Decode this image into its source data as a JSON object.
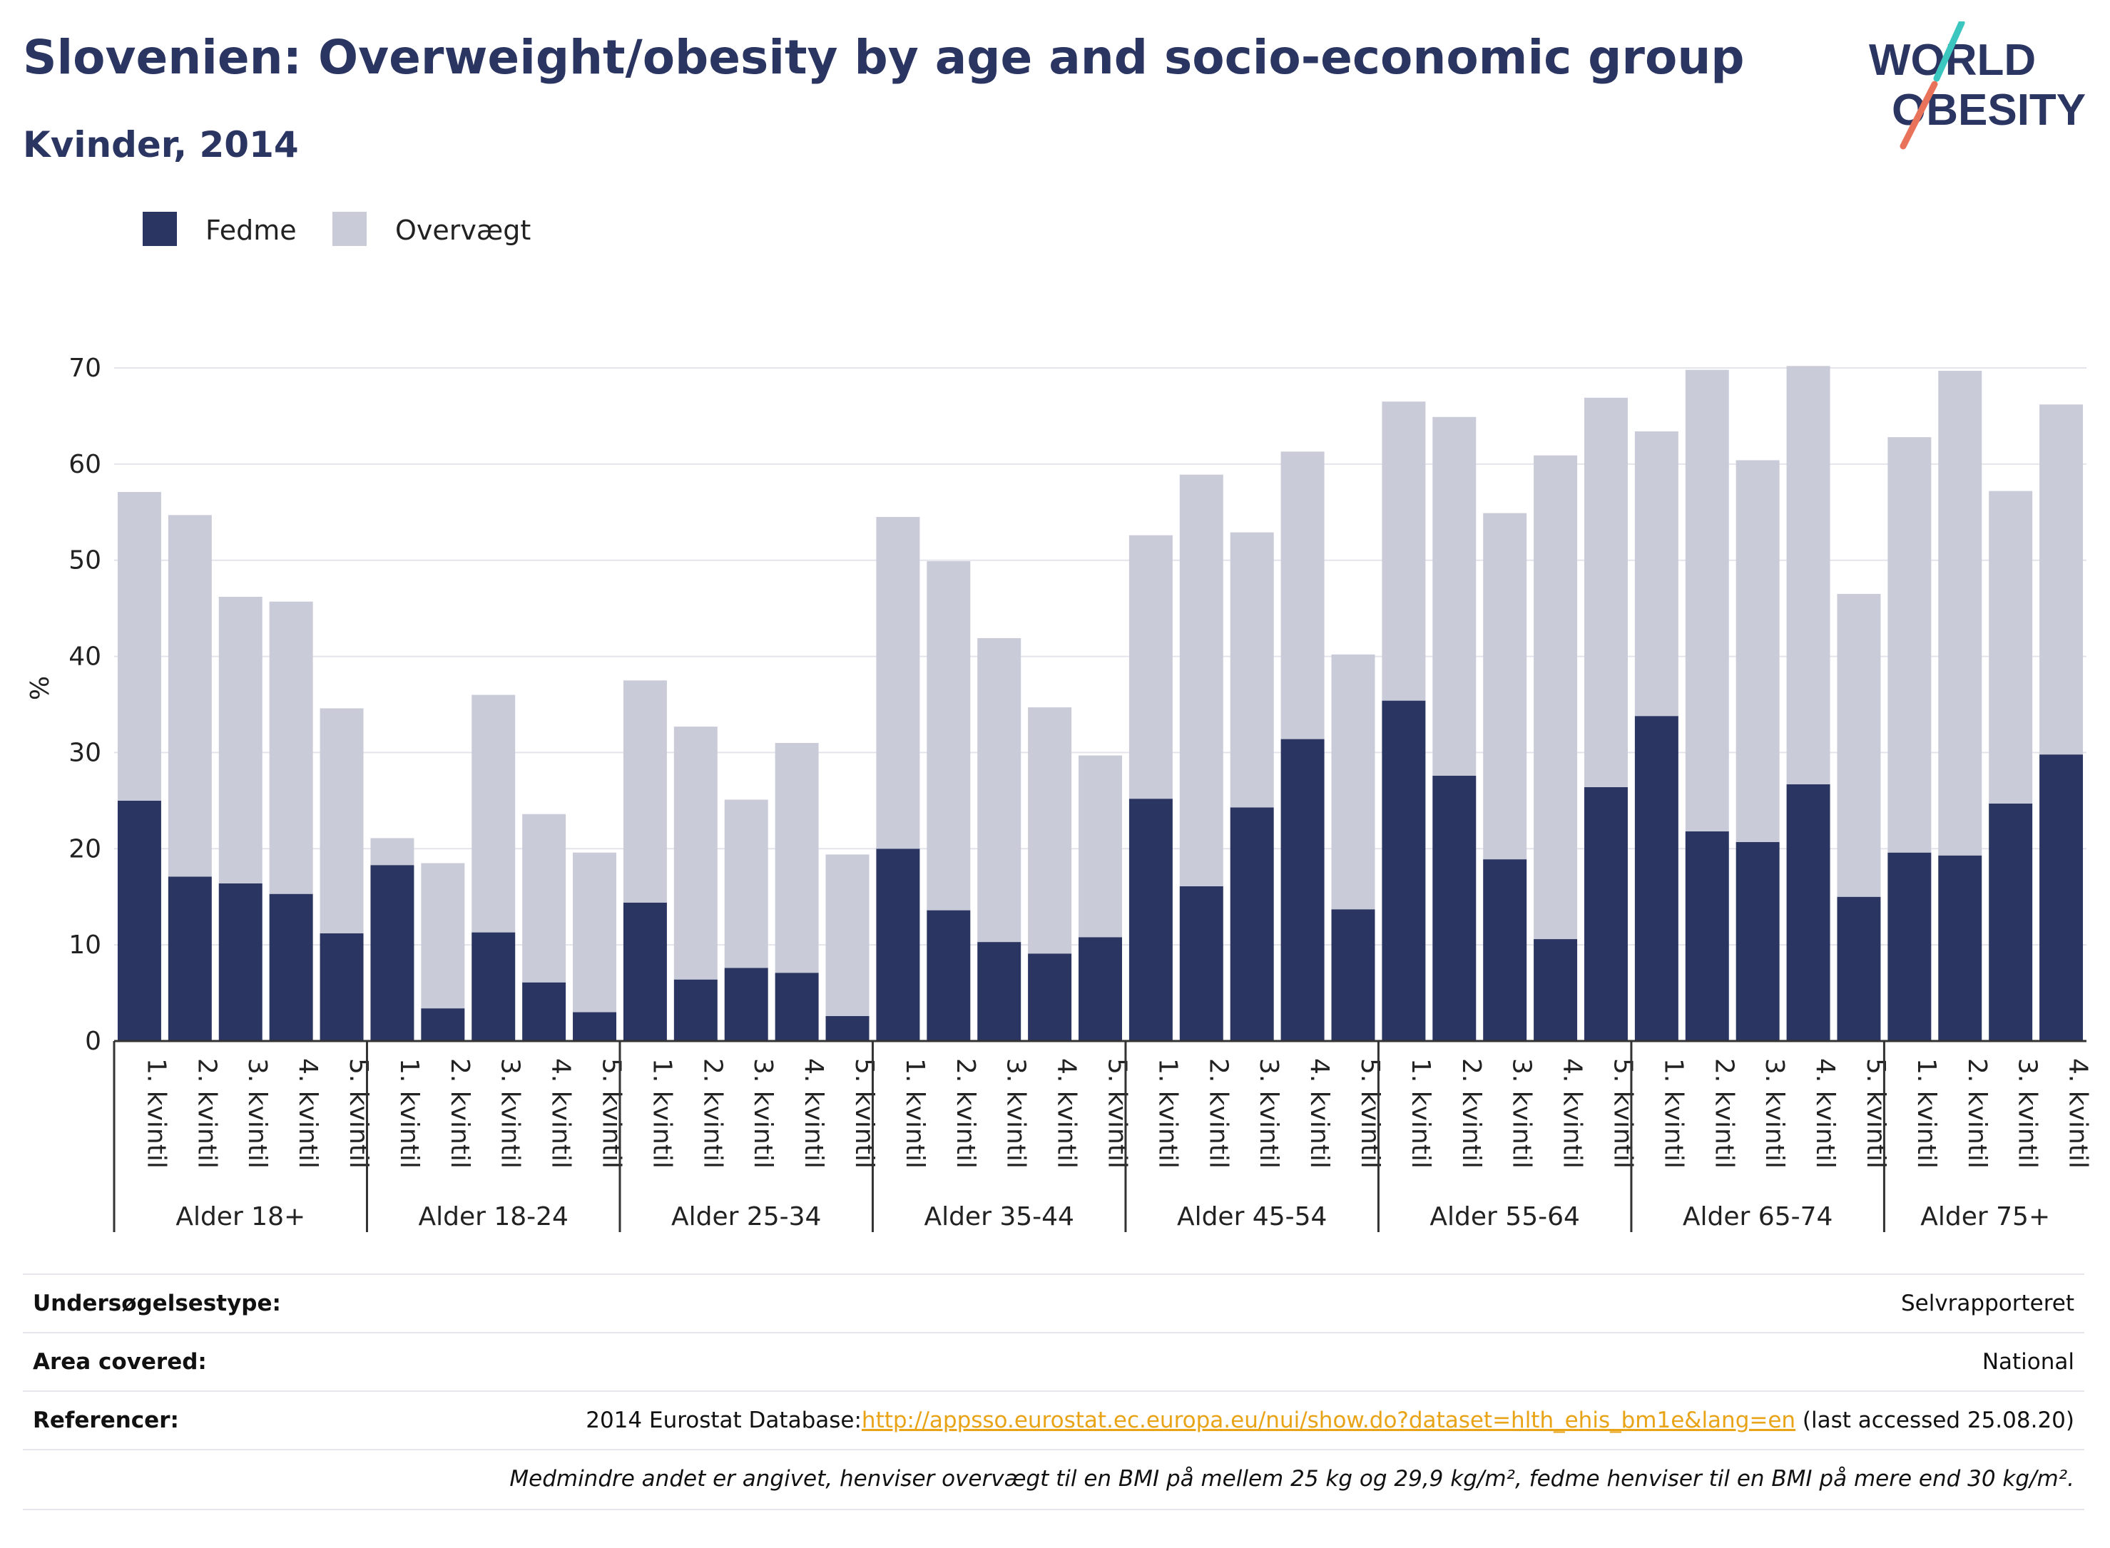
{
  "header": {
    "title": "Slovenien: Overweight/obesity by age and socio-economic group",
    "subtitle": "Kvinder, 2014"
  },
  "logo": {
    "line1": "WORLD",
    "line2": "OBESITY"
  },
  "colors": {
    "fedme": "#2b3561",
    "overvaegt": "#c9cbd8",
    "title": "#2b3561",
    "link": "#e8a317",
    "logo_slash_top": "#3cc6c0",
    "logo_slash_bottom": "#e8735a"
  },
  "chart_data": {
    "type": "bar",
    "stacked": true,
    "ylabel": "%",
    "ylim": [
      0,
      70
    ],
    "yticks": [
      0,
      10,
      20,
      30,
      40,
      50,
      60,
      70
    ],
    "grid": true,
    "legend_position": "top-left",
    "groups": [
      {
        "label": "Alder 18+",
        "categories": [
          "1. kvintil",
          "2. kvintil",
          "3. kvintil",
          "4. kvintil",
          "5. kvintil"
        ]
      },
      {
        "label": "Alder 18-24",
        "categories": [
          "1. kvintil",
          "2. kvintil",
          "3. kvintil",
          "4. kvintil",
          "5. kvintil"
        ]
      },
      {
        "label": "Alder 25-34",
        "categories": [
          "1. kvintil",
          "2. kvintil",
          "3. kvintil",
          "4. kvintil",
          "5. kvintil"
        ]
      },
      {
        "label": "Alder 35-44",
        "categories": [
          "1. kvintil",
          "2. kvintil",
          "3. kvintil",
          "4. kvintil",
          "5. kvintil"
        ]
      },
      {
        "label": "Alder 45-54",
        "categories": [
          "1. kvintil",
          "2. kvintil",
          "3. kvintil",
          "4. kvintil",
          "5. kvintil"
        ]
      },
      {
        "label": "Alder 55-64",
        "categories": [
          "1. kvintil",
          "2. kvintil",
          "3. kvintil",
          "4. kvintil",
          "5. kvintil"
        ]
      },
      {
        "label": "Alder 65-74",
        "categories": [
          "1. kvintil",
          "2. kvintil",
          "3. kvintil",
          "4. kvintil",
          "5. kvintil"
        ]
      },
      {
        "label": "Alder 75+",
        "categories": [
          "1. kvintil",
          "2. kvintil",
          "3. kvintil",
          "4. kvintil"
        ]
      }
    ],
    "series": [
      {
        "name": "Fedme",
        "values": [
          25,
          17.1,
          16.4,
          15.3,
          11.2,
          18.3,
          3.4,
          11.3,
          6.1,
          3.0,
          14.4,
          6.4,
          7.6,
          7.1,
          2.6,
          20.0,
          13.6,
          10.3,
          9.1,
          10.8,
          25.2,
          16.1,
          24.3,
          31.4,
          13.7,
          35.4,
          27.6,
          18.9,
          10.6,
          26.4,
          33.8,
          21.8,
          20.7,
          26.7,
          15.0,
          19.6,
          19.3,
          24.7,
          29.8
        ]
      },
      {
        "name": "Overvægt",
        "values": [
          32.1,
          37.6,
          29.8,
          30.4,
          23.4,
          2.8,
          15.1,
          24.7,
          17.5,
          16.6,
          23.1,
          26.3,
          17.5,
          23.9,
          16.8,
          34.5,
          36.3,
          31.6,
          25.6,
          18.9,
          27.4,
          42.8,
          28.6,
          29.9,
          26.5,
          31.1,
          37.3,
          36.0,
          50.3,
          40.5,
          29.6,
          48.0,
          39.7,
          43.5,
          31.5,
          43.2,
          50.4,
          32.5,
          36.4
        ]
      }
    ]
  },
  "info": {
    "survey_type_label": "Undersøgelsestype:",
    "survey_type_value": "Selvrapporteret",
    "area_label": "Area covered:",
    "area_value": "National",
    "references_label": "Referencer:",
    "references_prefix": "2014 Eurostat Database:",
    "references_link": "http://appsso.eurostat.ec.europa.eu/nui/show.do?dataset=hlth_ehis_bm1e&lang=en",
    "references_suffix": " (last accessed 25.08.20)",
    "note": "Medmindre andet er angivet, henviser overvægt til en BMI på mellem 25 kg og 29,9 kg/m², fedme henviser til en BMI på mere end 30 kg/m²."
  }
}
